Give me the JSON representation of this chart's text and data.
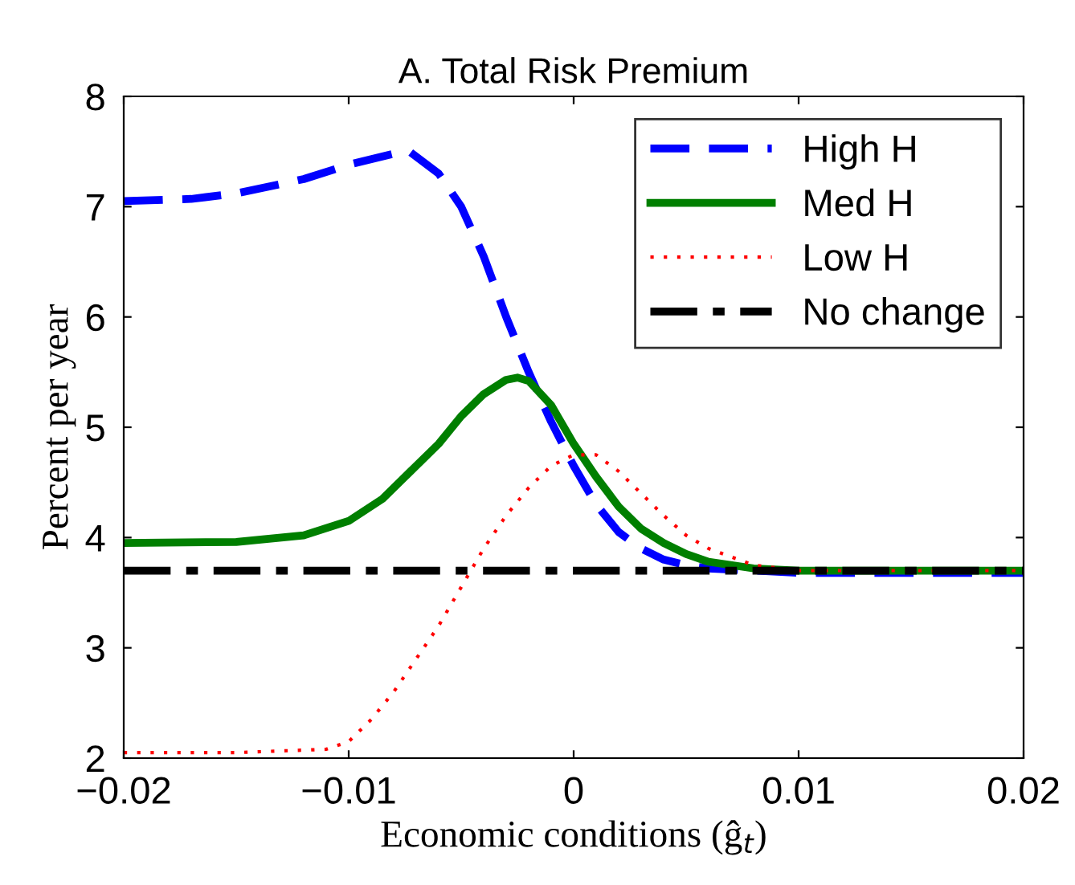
{
  "chart_data": {
    "type": "line",
    "title": "A. Total Risk Premium",
    "xlabel": "Economic conditions (ĝ$_{t}$)",
    "ylabel": "Percent per year",
    "xlim": [
      -0.02,
      0.02
    ],
    "xticks": [
      {
        "value": -0.02,
        "label": "−0.02"
      },
      {
        "value": -0.01,
        "label": "−0.01"
      },
      0,
      0.01,
      0.02
    ],
    "ylim": [
      2,
      8
    ],
    "yticks": [
      2,
      3,
      4,
      5,
      6,
      7,
      8
    ],
    "grid": false,
    "legend": "top right",
    "series": [
      {
        "name": "High H",
        "color": "#0000ff",
        "line_style": "dashed",
        "x": [
          -0.02,
          -0.017,
          -0.015,
          -0.012,
          -0.01,
          -0.008,
          -0.0073,
          -0.006,
          -0.005,
          -0.004,
          -0.003,
          -0.002,
          -0.001,
          0,
          0.001,
          0.002,
          0.003,
          0.004,
          0.005,
          0.006,
          0.008,
          0.01,
          0.015,
          0.02
        ],
        "values": [
          7.05,
          7.07,
          7.12,
          7.25,
          7.38,
          7.48,
          7.5,
          7.3,
          7.0,
          6.55,
          6.0,
          5.5,
          5.05,
          4.65,
          4.3,
          4.05,
          3.9,
          3.8,
          3.75,
          3.72,
          3.7,
          3.68,
          3.68,
          3.68
        ]
      },
      {
        "name": "Med H",
        "color": "#007f00",
        "line_style": "solid",
        "x": [
          -0.02,
          -0.015,
          -0.012,
          -0.01,
          -0.0085,
          -0.0075,
          -0.006,
          -0.005,
          -0.004,
          -0.003,
          -0.0025,
          -0.002,
          -0.001,
          0,
          0.001,
          0.002,
          0.003,
          0.004,
          0.005,
          0.006,
          0.008,
          0.01,
          0.015,
          0.02
        ],
        "values": [
          3.95,
          3.96,
          4.02,
          4.15,
          4.35,
          4.55,
          4.85,
          5.1,
          5.3,
          5.43,
          5.45,
          5.42,
          5.2,
          4.85,
          4.55,
          4.28,
          4.08,
          3.95,
          3.85,
          3.78,
          3.72,
          3.7,
          3.7,
          3.7
        ]
      },
      {
        "name": "Low H",
        "color": "#ff0000",
        "line_style": "dotted",
        "x": [
          -0.02,
          -0.015,
          -0.011,
          -0.01,
          -0.009,
          -0.008,
          -0.007,
          -0.006,
          -0.005,
          -0.004,
          -0.003,
          -0.002,
          -0.001,
          0,
          0.001,
          0.002,
          0.003,
          0.004,
          0.005,
          0.006,
          0.008,
          0.01,
          0.015,
          0.02
        ],
        "values": [
          2.05,
          2.05,
          2.08,
          2.15,
          2.35,
          2.6,
          2.9,
          3.2,
          3.55,
          3.9,
          4.2,
          4.45,
          4.65,
          4.75,
          4.75,
          4.6,
          4.4,
          4.2,
          4.02,
          3.9,
          3.75,
          3.7,
          3.7,
          3.7
        ]
      },
      {
        "name": "No change",
        "color": "#000000",
        "line_style": "dashdot",
        "x": [
          -0.02,
          0.02
        ],
        "values": [
          3.7,
          3.7
        ]
      }
    ]
  }
}
